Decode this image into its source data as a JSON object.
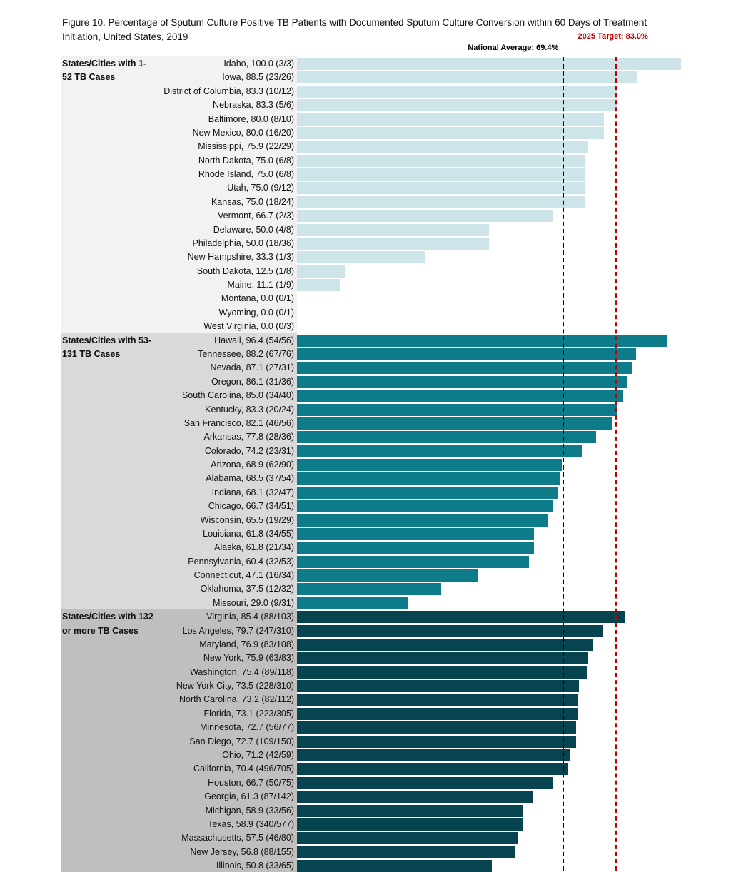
{
  "chart_data": {
    "type": "bar",
    "orientation": "horizontal",
    "title": "Figure 10.  Percentage of Sputum Culture Positive TB Patients with Documented Sputum Culture Conversion within 60 Days of Treatment Initiation, United States, 2019",
    "xlim": [
      0,
      100
    ],
    "grid": false,
    "reference_lines": [
      {
        "label": "National Average: 69.4%",
        "value": 69.4,
        "color": "#000000"
      },
      {
        "label": "2025 Target: 83.0%",
        "value": 83.0,
        "color": "#c00000"
      }
    ],
    "groups": [
      {
        "label": "States/Cities with 1-52 TB Cases",
        "bar_color": "#cde4e9",
        "bg_color": "#f2f2f2",
        "rows": [
          {
            "label": "Idaho, 100.0 (3/3)",
            "value": 100.0
          },
          {
            "label": "Iowa, 88.5 (23/26)",
            "value": 88.5
          },
          {
            "label": "District of Columbia, 83.3 (10/12)",
            "value": 83.3
          },
          {
            "label": "Nebraska, 83.3 (5/6)",
            "value": 83.3
          },
          {
            "label": "Baltimore, 80.0 (8/10)",
            "value": 80.0
          },
          {
            "label": "New Mexico, 80.0 (16/20)",
            "value": 80.0
          },
          {
            "label": "Mississippi, 75.9 (22/29)",
            "value": 75.9
          },
          {
            "label": "North Dakota, 75.0 (6/8)",
            "value": 75.0
          },
          {
            "label": "Rhode Island, 75.0 (6/8)",
            "value": 75.0
          },
          {
            "label": "Utah, 75.0 (9/12)",
            "value": 75.0
          },
          {
            "label": "Kansas, 75.0 (18/24)",
            "value": 75.0
          },
          {
            "label": "Vermont, 66.7 (2/3)",
            "value": 66.7
          },
          {
            "label": "Delaware, 50.0 (4/8)",
            "value": 50.0
          },
          {
            "label": "Philadelphia, 50.0 (18/36)",
            "value": 50.0
          },
          {
            "label": "New Hampshire, 33.3 (1/3)",
            "value": 33.3
          },
          {
            "label": "South Dakota, 12.5 (1/8)",
            "value": 12.5
          },
          {
            "label": "Maine, 11.1 (1/9)",
            "value": 11.1
          },
          {
            "label": "Montana, 0.0 (0/1)",
            "value": 0.0
          },
          {
            "label": "Wyoming, 0.0 (0/1)",
            "value": 0.0
          },
          {
            "label": "West Virginia, 0.0 (0/3)",
            "value": 0.0
          }
        ]
      },
      {
        "label": "States/Cities with 53-131 TB Cases",
        "bar_color": "#0e7b8a",
        "bg_color": "#d9d9d9",
        "rows": [
          {
            "label": "Hawaii, 96.4 (54/56)",
            "value": 96.4
          },
          {
            "label": "Tennessee, 88.2 (67/76)",
            "value": 88.2
          },
          {
            "label": "Nevada, 87.1 (27/31)",
            "value": 87.1
          },
          {
            "label": "Oregon, 86.1 (31/36)",
            "value": 86.1
          },
          {
            "label": "South Carolina, 85.0 (34/40)",
            "value": 85.0
          },
          {
            "label": "Kentucky, 83.3 (20/24)",
            "value": 83.3
          },
          {
            "label": "San Francisco, 82.1 (46/56)",
            "value": 82.1
          },
          {
            "label": "Arkansas, 77.8 (28/36)",
            "value": 77.8
          },
          {
            "label": "Colorado, 74.2 (23/31)",
            "value": 74.2
          },
          {
            "label": "Arizona, 68.9 (62/90)",
            "value": 68.9
          },
          {
            "label": "Alabama, 68.5 (37/54)",
            "value": 68.5
          },
          {
            "label": "Indiana, 68.1 (32/47)",
            "value": 68.1
          },
          {
            "label": "Chicago, 66.7 (34/51)",
            "value": 66.7
          },
          {
            "label": "Wisconsin, 65.5 (19/29)",
            "value": 65.5
          },
          {
            "label": "Louisiana, 61.8 (34/55)",
            "value": 61.8
          },
          {
            "label": "Alaska, 61.8 (21/34)",
            "value": 61.8
          },
          {
            "label": "Pennsylvania, 60.4 (32/53)",
            "value": 60.4
          },
          {
            "label": "Connecticut, 47.1 (16/34)",
            "value": 47.1
          },
          {
            "label": "Oklahoma, 37.5 (12/32)",
            "value": 37.5
          },
          {
            "label": "Missouri, 29.0 (9/31)",
            "value": 29.0
          }
        ]
      },
      {
        "label": "States/Cities with 132 or more TB Cases",
        "bar_color": "#074450",
        "bg_color": "#bfbfbf",
        "rows": [
          {
            "label": "Virginia, 85.4 (88/103)",
            "value": 85.4
          },
          {
            "label": "Los Angeles, 79.7 (247/310)",
            "value": 79.7
          },
          {
            "label": "Maryland, 76.9 (83/108)",
            "value": 76.9
          },
          {
            "label": "New York, 75.9 (63/83)",
            "value": 75.9
          },
          {
            "label": "Washington, 75.4 (89/118)",
            "value": 75.4
          },
          {
            "label": "New York City, 73.5 (228/310)",
            "value": 73.5
          },
          {
            "label": "North Carolina, 73.2 (82/112)",
            "value": 73.2
          },
          {
            "label": "Florida, 73.1 (223/305)",
            "value": 73.1
          },
          {
            "label": "Minnesota, 72.7 (56/77)",
            "value": 72.7
          },
          {
            "label": "San Diego, 72.7 (109/150)",
            "value": 72.7
          },
          {
            "label": "Ohio, 71.2 (42/59)",
            "value": 71.2
          },
          {
            "label": "California, 70.4 (496/705)",
            "value": 70.4
          },
          {
            "label": "Houston, 66.7 (50/75)",
            "value": 66.7
          },
          {
            "label": "Georgia, 61.3 (87/142)",
            "value": 61.3
          },
          {
            "label": "Michigan, 58.9 (33/56)",
            "value": 58.9
          },
          {
            "label": "Texas, 58.9 (340/577)",
            "value": 58.9
          },
          {
            "label": "Massachusetts, 57.5 (46/80)",
            "value": 57.5
          },
          {
            "label": "New Jersey, 56.8 (88/155)",
            "value": 56.8
          },
          {
            "label": "Illinois, 50.8 (33/65)",
            "value": 50.8
          }
        ]
      }
    ]
  }
}
